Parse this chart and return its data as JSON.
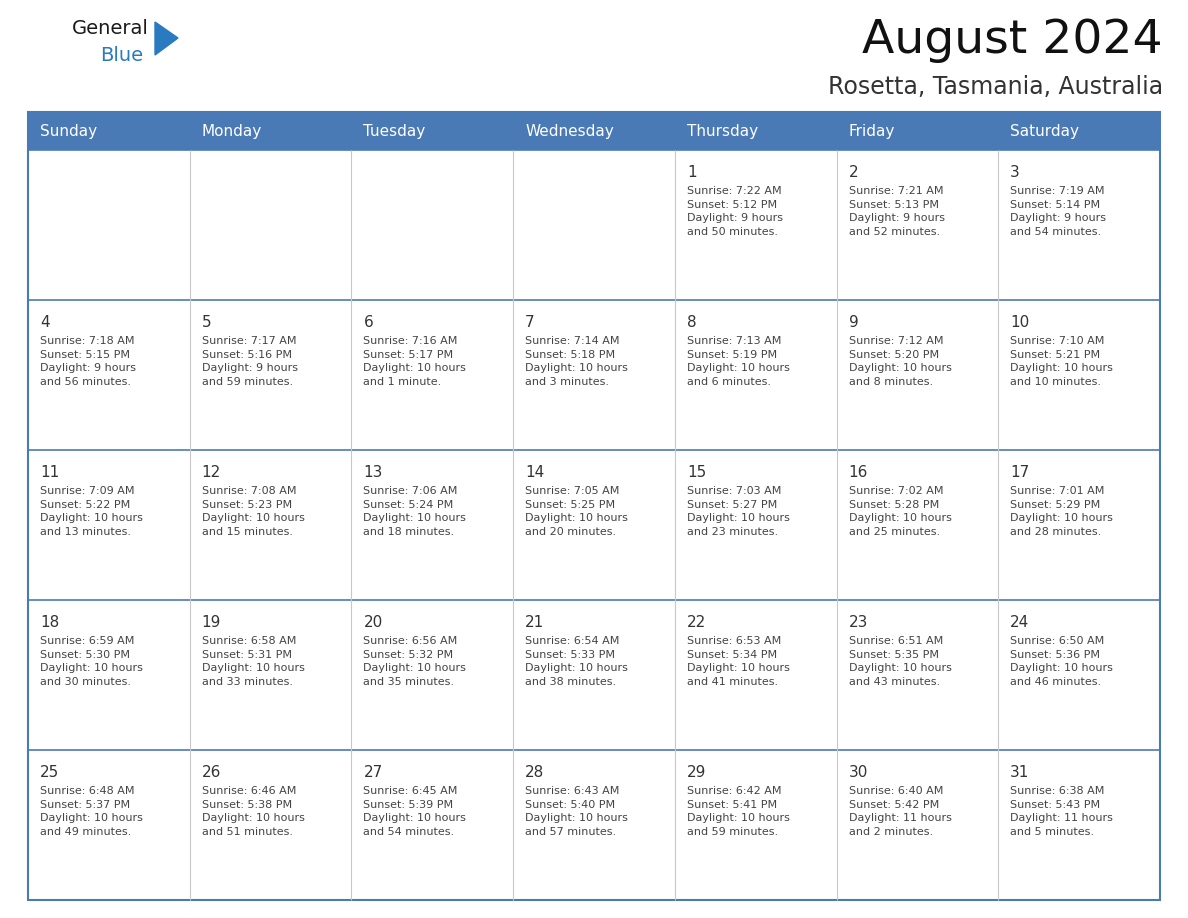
{
  "title": "August 2024",
  "subtitle": "Rosetta, Tasmania, Australia",
  "header_color": "#4a7ab5",
  "header_text_color": "#ffffff",
  "cell_bg_color": "#ffffff",
  "border_color": "#4a7ab5",
  "text_color": "#444444",
  "day_num_color": "#333333",
  "days_of_week": [
    "Sunday",
    "Monday",
    "Tuesday",
    "Wednesday",
    "Thursday",
    "Friday",
    "Saturday"
  ],
  "calendar_data": [
    [
      {
        "day": "",
        "info": ""
      },
      {
        "day": "",
        "info": ""
      },
      {
        "day": "",
        "info": ""
      },
      {
        "day": "",
        "info": ""
      },
      {
        "day": "1",
        "info": "Sunrise: 7:22 AM\nSunset: 5:12 PM\nDaylight: 9 hours\nand 50 minutes."
      },
      {
        "day": "2",
        "info": "Sunrise: 7:21 AM\nSunset: 5:13 PM\nDaylight: 9 hours\nand 52 minutes."
      },
      {
        "day": "3",
        "info": "Sunrise: 7:19 AM\nSunset: 5:14 PM\nDaylight: 9 hours\nand 54 minutes."
      }
    ],
    [
      {
        "day": "4",
        "info": "Sunrise: 7:18 AM\nSunset: 5:15 PM\nDaylight: 9 hours\nand 56 minutes."
      },
      {
        "day": "5",
        "info": "Sunrise: 7:17 AM\nSunset: 5:16 PM\nDaylight: 9 hours\nand 59 minutes."
      },
      {
        "day": "6",
        "info": "Sunrise: 7:16 AM\nSunset: 5:17 PM\nDaylight: 10 hours\nand 1 minute."
      },
      {
        "day": "7",
        "info": "Sunrise: 7:14 AM\nSunset: 5:18 PM\nDaylight: 10 hours\nand 3 minutes."
      },
      {
        "day": "8",
        "info": "Sunrise: 7:13 AM\nSunset: 5:19 PM\nDaylight: 10 hours\nand 6 minutes."
      },
      {
        "day": "9",
        "info": "Sunrise: 7:12 AM\nSunset: 5:20 PM\nDaylight: 10 hours\nand 8 minutes."
      },
      {
        "day": "10",
        "info": "Sunrise: 7:10 AM\nSunset: 5:21 PM\nDaylight: 10 hours\nand 10 minutes."
      }
    ],
    [
      {
        "day": "11",
        "info": "Sunrise: 7:09 AM\nSunset: 5:22 PM\nDaylight: 10 hours\nand 13 minutes."
      },
      {
        "day": "12",
        "info": "Sunrise: 7:08 AM\nSunset: 5:23 PM\nDaylight: 10 hours\nand 15 minutes."
      },
      {
        "day": "13",
        "info": "Sunrise: 7:06 AM\nSunset: 5:24 PM\nDaylight: 10 hours\nand 18 minutes."
      },
      {
        "day": "14",
        "info": "Sunrise: 7:05 AM\nSunset: 5:25 PM\nDaylight: 10 hours\nand 20 minutes."
      },
      {
        "day": "15",
        "info": "Sunrise: 7:03 AM\nSunset: 5:27 PM\nDaylight: 10 hours\nand 23 minutes."
      },
      {
        "day": "16",
        "info": "Sunrise: 7:02 AM\nSunset: 5:28 PM\nDaylight: 10 hours\nand 25 minutes."
      },
      {
        "day": "17",
        "info": "Sunrise: 7:01 AM\nSunset: 5:29 PM\nDaylight: 10 hours\nand 28 minutes."
      }
    ],
    [
      {
        "day": "18",
        "info": "Sunrise: 6:59 AM\nSunset: 5:30 PM\nDaylight: 10 hours\nand 30 minutes."
      },
      {
        "day": "19",
        "info": "Sunrise: 6:58 AM\nSunset: 5:31 PM\nDaylight: 10 hours\nand 33 minutes."
      },
      {
        "day": "20",
        "info": "Sunrise: 6:56 AM\nSunset: 5:32 PM\nDaylight: 10 hours\nand 35 minutes."
      },
      {
        "day": "21",
        "info": "Sunrise: 6:54 AM\nSunset: 5:33 PM\nDaylight: 10 hours\nand 38 minutes."
      },
      {
        "day": "22",
        "info": "Sunrise: 6:53 AM\nSunset: 5:34 PM\nDaylight: 10 hours\nand 41 minutes."
      },
      {
        "day": "23",
        "info": "Sunrise: 6:51 AM\nSunset: 5:35 PM\nDaylight: 10 hours\nand 43 minutes."
      },
      {
        "day": "24",
        "info": "Sunrise: 6:50 AM\nSunset: 5:36 PM\nDaylight: 10 hours\nand 46 minutes."
      }
    ],
    [
      {
        "day": "25",
        "info": "Sunrise: 6:48 AM\nSunset: 5:37 PM\nDaylight: 10 hours\nand 49 minutes."
      },
      {
        "day": "26",
        "info": "Sunrise: 6:46 AM\nSunset: 5:38 PM\nDaylight: 10 hours\nand 51 minutes."
      },
      {
        "day": "27",
        "info": "Sunrise: 6:45 AM\nSunset: 5:39 PM\nDaylight: 10 hours\nand 54 minutes."
      },
      {
        "day": "28",
        "info": "Sunrise: 6:43 AM\nSunset: 5:40 PM\nDaylight: 10 hours\nand 57 minutes."
      },
      {
        "day": "29",
        "info": "Sunrise: 6:42 AM\nSunset: 5:41 PM\nDaylight: 10 hours\nand 59 minutes."
      },
      {
        "day": "30",
        "info": "Sunrise: 6:40 AM\nSunset: 5:42 PM\nDaylight: 11 hours\nand 2 minutes."
      },
      {
        "day": "31",
        "info": "Sunrise: 6:38 AM\nSunset: 5:43 PM\nDaylight: 11 hours\nand 5 minutes."
      }
    ]
  ],
  "logo_text1": "General",
  "logo_text2": "Blue",
  "logo_color1": "#1a1a1a",
  "logo_color2": "#2a7abf",
  "logo_triangle_color": "#2a7abf",
  "figwidth": 11.88,
  "figheight": 9.18,
  "dpi": 100
}
